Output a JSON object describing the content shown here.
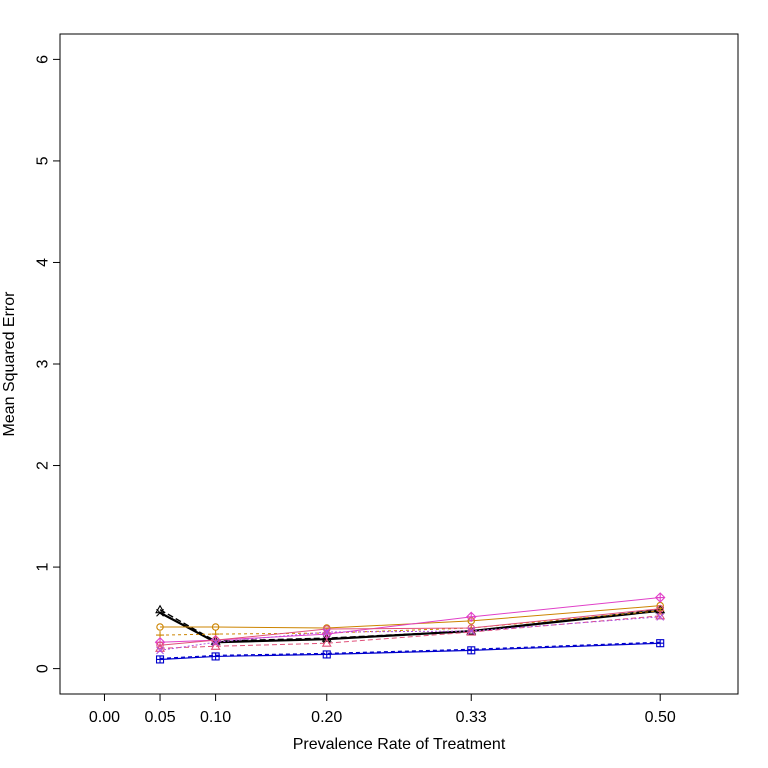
{
  "chart_data": {
    "type": "line",
    "title": "",
    "xlabel": "Prevalence Rate of Treatment",
    "ylabel": "Mean Squared Error",
    "xlim": [
      -0.04,
      0.57
    ],
    "ylim": [
      -0.25,
      6.25
    ],
    "x_ticks": [
      0.0,
      0.05,
      0.1,
      0.2,
      0.33,
      0.5
    ],
    "x_tick_labels": [
      "0.00",
      "0.05",
      "0.10",
      "0.20",
      "0.33",
      "0.50"
    ],
    "y_ticks": [
      0,
      1,
      2,
      3,
      4,
      5,
      6
    ],
    "y_tick_labels": [
      "0",
      "1",
      "2",
      "3",
      "4",
      "5",
      "6"
    ],
    "grid": false,
    "x": [
      0.05,
      0.1,
      0.2,
      0.33,
      0.5
    ],
    "series": [
      {
        "color": "#000000",
        "dash": "6,3",
        "marker": "triangle",
        "width": 1.4,
        "values": [
          0.58,
          0.27,
          0.3,
          0.37,
          0.58
        ]
      },
      {
        "color": "#000000",
        "dash": "",
        "marker": "x",
        "width": 2.2,
        "values": [
          0.55,
          0.26,
          0.29,
          0.37,
          0.57
        ]
      },
      {
        "color": "#0000cc",
        "dash": "",
        "marker": "square-plus",
        "width": 1.2,
        "values": [
          0.09,
          0.12,
          0.14,
          0.18,
          0.25
        ]
      },
      {
        "color": "#0000cc",
        "dash": "4,3",
        "marker": "none",
        "width": 1.2,
        "values": [
          0.1,
          0.13,
          0.15,
          0.19,
          0.26
        ]
      },
      {
        "color": "#cc8400",
        "dash": "",
        "marker": "circle",
        "width": 1.0,
        "values": [
          0.41,
          0.41,
          0.4,
          0.47,
          0.62
        ]
      },
      {
        "color": "#cc8400",
        "dash": "3,3",
        "marker": "plus",
        "width": 1.0,
        "values": [
          0.33,
          0.34,
          0.35,
          0.4,
          0.57
        ]
      },
      {
        "color": "#e040c8",
        "dash": "",
        "marker": "diamond-plus",
        "width": 1.0,
        "values": [
          0.26,
          0.28,
          0.34,
          0.51,
          0.7
        ]
      },
      {
        "color": "#e0507a",
        "dash": "",
        "marker": "circle",
        "width": 1.0,
        "values": [
          0.23,
          0.28,
          0.39,
          0.4,
          0.59
        ]
      },
      {
        "color": "#e0507a",
        "dash": "5,3",
        "marker": "triangle",
        "width": 1.0,
        "values": [
          0.2,
          0.22,
          0.25,
          0.36,
          0.52
        ]
      },
      {
        "color": "#b050e0",
        "dash": "2,2",
        "marker": "x",
        "width": 1.0,
        "values": [
          0.18,
          0.26,
          0.36,
          0.37,
          0.51
        ]
      }
    ]
  }
}
